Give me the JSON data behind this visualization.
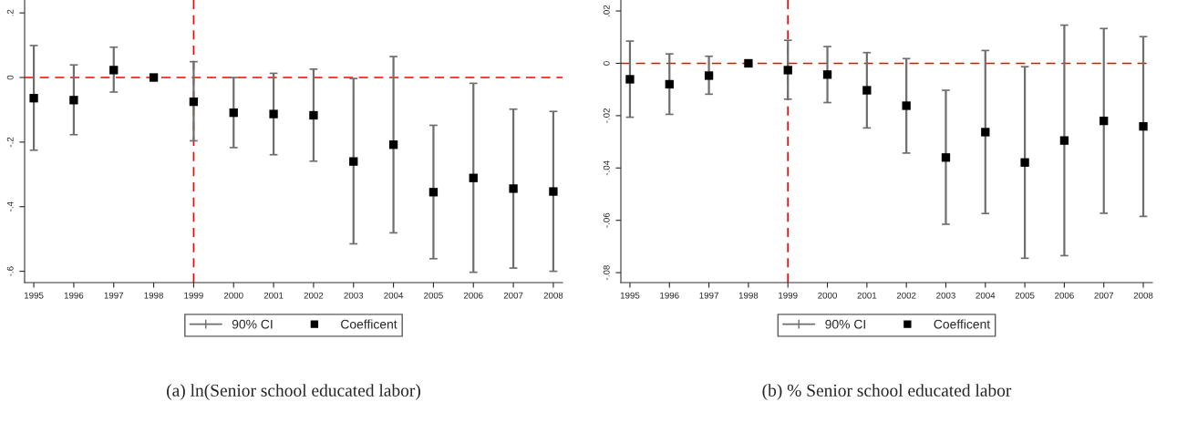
{
  "chart_data": [
    {
      "type": "scatter",
      "title": "(a) ln(Senior school educated labor)",
      "annotations": [
        "90% CI"
      ],
      "categories": [
        "1995",
        "1996",
        "1997",
        "1998",
        "1999",
        "2000",
        "2001",
        "2002",
        "2003",
        "2004",
        "2005",
        "2006",
        "2007",
        "2008"
      ],
      "series": [
        {
          "name": "Coefficent",
          "color": "#000000",
          "marker": "square",
          "values": [
            -0.064,
            -0.07,
            0.023,
            0,
            -0.075,
            -0.109,
            -0.113,
            -0.117,
            -0.26,
            -0.208,
            -0.355,
            -0.311,
            -0.344,
            -0.353
          ],
          "errors": [
            [
              -0.225,
              0.099
            ],
            [
              -0.177,
              0.039
            ],
            [
              -0.045,
              0.094
            ],
            null,
            [
              -0.196,
              0.049
            ],
            [
              -0.217,
              0.0
            ],
            [
              -0.239,
              0.013
            ],
            [
              -0.259,
              0.026
            ],
            [
              -0.515,
              -0.003
            ],
            [
              -0.481,
              0.065
            ],
            [
              -0.561,
              -0.148
            ],
            [
              -0.603,
              -0.018
            ],
            [
              -0.59,
              -0.098
            ],
            [
              -0.6,
              -0.105
            ]
          ]
        }
      ],
      "ylim": [
        -0.635,
        0.24
      ],
      "yticks": [
        {
          "value": 0.2,
          "label": ".2"
        },
        {
          "value": 0,
          "label": "0"
        },
        {
          "value": -0.2,
          "label": "-.2"
        },
        {
          "value": -0.4,
          "label": "-.4"
        },
        {
          "value": -0.6,
          "label": "-.6"
        }
      ],
      "ref_lines": [
        {
          "axis": "y",
          "value": 0,
          "color": "#ff0000",
          "line_style": "dashed"
        },
        {
          "axis": "x",
          "value": "1999",
          "color": "#ff0000",
          "line_style": "dashed"
        }
      ],
      "grid": false,
      "legend": "bottom"
    },
    {
      "type": "scatter",
      "title": "(b) % Senior school educated labor",
      "annotations": [
        "90% CI"
      ],
      "categories": [
        "1995",
        "1996",
        "1997",
        "1998",
        "1999",
        "2000",
        "2001",
        "2002",
        "2003",
        "2004",
        "2005",
        "2006",
        "2007",
        "2008"
      ],
      "series": [
        {
          "name": "Coefficent",
          "color": "#000000",
          "marker": "square",
          "values": [
            -0.0061,
            -0.008,
            -0.0047,
            0,
            -0.0026,
            -0.0043,
            -0.0103,
            -0.0162,
            -0.036,
            -0.0263,
            -0.0379,
            -0.0295,
            -0.022,
            -0.0241
          ],
          "errors": [
            [
              -0.0206,
              0.0085
            ],
            [
              -0.0195,
              0.0036
            ],
            [
              -0.0118,
              0.0027
            ],
            null,
            [
              -0.0137,
              0.0088
            ],
            [
              -0.015,
              0.0064
            ],
            [
              -0.0247,
              0.0041
            ],
            [
              -0.0343,
              0.0018
            ],
            [
              -0.0615,
              -0.0103
            ],
            [
              -0.0574,
              0.0049
            ],
            [
              -0.0745,
              -0.0013
            ],
            [
              -0.0735,
              0.0146
            ],
            [
              -0.0573,
              0.0133
            ],
            [
              -0.0585,
              0.0102
            ]
          ]
        }
      ],
      "ylim": [
        -0.0838,
        0.0242
      ],
      "yticks": [
        {
          "value": 0.02,
          "label": ".02"
        },
        {
          "value": 0,
          "label": "0"
        },
        {
          "value": -0.02,
          "label": "-.02"
        },
        {
          "value": -0.04,
          "label": "-.04"
        },
        {
          "value": -0.06,
          "label": "-.06"
        },
        {
          "value": -0.08,
          "label": "-.08"
        }
      ],
      "ref_lines": [
        {
          "axis": "y",
          "value": 0,
          "color": "#ff0000",
          "line_style": "dashed"
        },
        {
          "axis": "x",
          "value": "1999",
          "color": "#ff0000",
          "line_style": "dashed"
        }
      ],
      "grid": false,
      "legend": "bottom"
    }
  ]
}
